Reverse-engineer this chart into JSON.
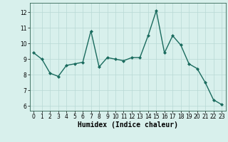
{
  "x": [
    0,
    1,
    2,
    3,
    4,
    5,
    6,
    7,
    8,
    9,
    10,
    11,
    12,
    13,
    14,
    15,
    16,
    17,
    18,
    19,
    20,
    21,
    22,
    23
  ],
  "y": [
    9.4,
    9.0,
    8.1,
    7.9,
    8.6,
    8.7,
    8.8,
    10.8,
    8.5,
    9.1,
    9.0,
    8.9,
    9.1,
    9.1,
    10.5,
    12.1,
    9.4,
    10.5,
    9.9,
    8.7,
    8.4,
    7.5,
    6.4,
    6.1
  ],
  "line_color": "#1a6b5e",
  "marker": "D",
  "marker_size": 2.0,
  "bg_color": "#d8f0ec",
  "grid_color": "#b8d8d4",
  "xlabel": "Humidex (Indice chaleur)",
  "ylim": [
    5.7,
    12.6
  ],
  "xlim": [
    -0.5,
    23.5
  ],
  "yticks": [
    6,
    7,
    8,
    9,
    10,
    11,
    12
  ],
  "xticks": [
    0,
    1,
    2,
    3,
    4,
    5,
    6,
    7,
    8,
    9,
    10,
    11,
    12,
    13,
    14,
    15,
    16,
    17,
    18,
    19,
    20,
    21,
    22,
    23
  ],
  "tick_fontsize": 5.5,
  "xlabel_fontsize": 7.0,
  "linewidth": 1.0
}
